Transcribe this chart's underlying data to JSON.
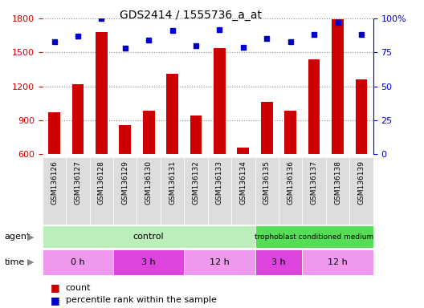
{
  "title": "GDS2414 / 1555736_a_at",
  "samples": [
    "GSM136126",
    "GSM136127",
    "GSM136128",
    "GSM136129",
    "GSM136130",
    "GSM136131",
    "GSM136132",
    "GSM136133",
    "GSM136134",
    "GSM136135",
    "GSM136136",
    "GSM136137",
    "GSM136138",
    "GSM136139"
  ],
  "counts": [
    970,
    1220,
    1680,
    855,
    980,
    1310,
    940,
    1540,
    660,
    1060,
    980,
    1440,
    1790,
    1260
  ],
  "percentile_ranks": [
    83,
    87,
    100,
    78,
    84,
    91,
    80,
    92,
    79,
    85,
    83,
    88,
    97,
    88
  ],
  "ylim_left": [
    600,
    1800
  ],
  "ylim_right": [
    0,
    100
  ],
  "yticks_left": [
    600,
    900,
    1200,
    1500,
    1800
  ],
  "yticks_right": [
    0,
    25,
    50,
    75,
    100
  ],
  "bar_color": "#cc0000",
  "dot_color": "#0000cc",
  "bar_width": 0.5,
  "agent_control_color": "#bbeebb",
  "agent_tropho_color": "#55dd55",
  "time_colors": [
    "#ee99ee",
    "#dd44dd",
    "#ee99ee",
    "#dd44dd",
    "#ee99ee"
  ],
  "time_groups": [
    {
      "label": "0 h",
      "start": 0,
      "end": 3
    },
    {
      "label": "3 h",
      "start": 3,
      "end": 6
    },
    {
      "label": "12 h",
      "start": 6,
      "end": 9
    },
    {
      "label": "3 h",
      "start": 9,
      "end": 11
    },
    {
      "label": "12 h",
      "start": 11,
      "end": 14
    }
  ],
  "grid_color": "#888888",
  "plot_bg": "#ffffff",
  "fig_bg": "#ffffff",
  "border_color": "#aaaaaa"
}
